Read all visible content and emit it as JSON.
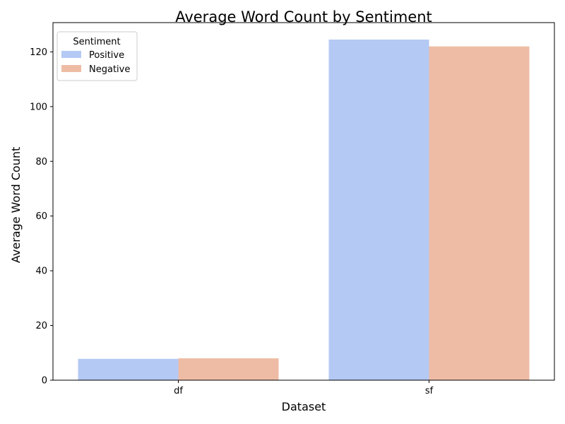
{
  "chart_data": {
    "type": "bar",
    "title": "Average Word Count by Sentiment",
    "xlabel": "Dataset",
    "ylabel": "Average Word Count",
    "categories": [
      "df",
      "sf"
    ],
    "series": [
      {
        "name": "Positive",
        "values": [
          7.8,
          124.5
        ],
        "color": "#b4c9f4"
      },
      {
        "name": "Negative",
        "values": [
          8.0,
          122.0
        ],
        "color": "#eebca5"
      }
    ],
    "ylim": [
      0,
      130.7
    ],
    "yticks": [
      0,
      20,
      40,
      60,
      80,
      100,
      120
    ],
    "legend": {
      "title": "Sentiment",
      "placement": "top-left"
    },
    "grid": false
  }
}
